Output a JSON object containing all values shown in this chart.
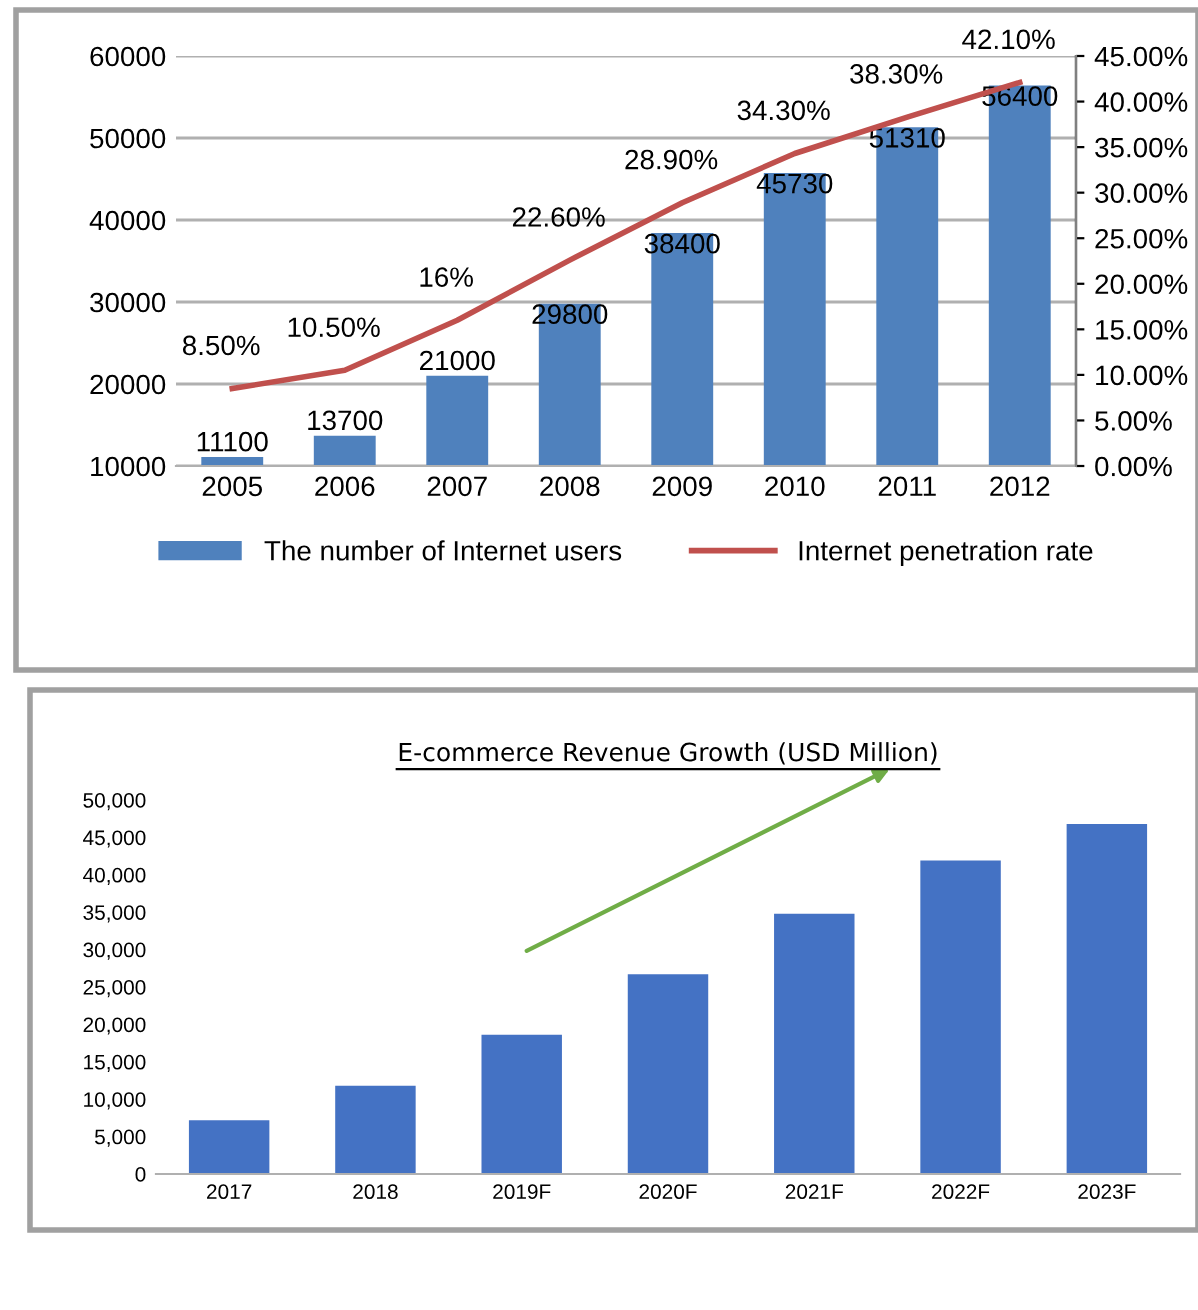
{
  "chart_data": [
    {
      "type": "bar",
      "categories": [
        "2005",
        "2006",
        "2007",
        "2008",
        "2009",
        "2010",
        "2011",
        "2012"
      ],
      "series": [
        {
          "name": "The number of Internet users",
          "color": "#4f81bd",
          "values": [
            11100,
            13700,
            21000,
            29800,
            38400,
            45730,
            51310,
            56400
          ],
          "value_labels": [
            "11100",
            "13700",
            "21000",
            "29800",
            "38400",
            "45730",
            "51310",
            "56400"
          ]
        },
        {
          "name": "Internet penetration rate",
          "type": "line",
          "axis": "y2",
          "color": "#c0504d",
          "values": [
            8.5,
            10.5,
            16,
            22.6,
            28.9,
            34.3,
            38.3,
            42.1
          ],
          "value_labels": [
            "8.50%",
            "10.50%",
            "16%",
            "22.60%",
            "28.90%",
            "34.30%",
            "38.30%",
            "42.10%"
          ]
        }
      ],
      "ylim": [
        10000,
        60000
      ],
      "yticks": [
        10000,
        20000,
        30000,
        40000,
        50000,
        60000
      ],
      "y2lim": [
        0,
        45
      ],
      "y2ticks": [
        {
          "value": 0,
          "label": "0.00%"
        },
        {
          "value": 5,
          "label": "5.00%"
        },
        {
          "value": 10,
          "label": "10.00%"
        },
        {
          "value": 15,
          "label": "15.00%"
        },
        {
          "value": 20,
          "label": "20.00%"
        },
        {
          "value": 25,
          "label": "25.00%"
        },
        {
          "value": 30,
          "label": "30.00%"
        },
        {
          "value": 35,
          "label": "35.00%"
        },
        {
          "value": 40,
          "label": "40.00%"
        },
        {
          "value": 45,
          "label": "45.00%"
        }
      ],
      "grid": "y",
      "legend": "bottom"
    },
    {
      "type": "bar",
      "title": "E-commerce Revenue Growth (USD Million)",
      "categories": [
        "2017",
        "2018",
        "2019F",
        "2020F",
        "2021F",
        "2022F",
        "2023F"
      ],
      "series": [
        {
          "color": "#4472c4",
          "values": [
            7200,
            11800,
            18600,
            26700,
            34800,
            41900,
            46800
          ]
        }
      ],
      "ylim": [
        0,
        50000
      ],
      "yticks": [
        {
          "value": 0,
          "label": "0"
        },
        {
          "value": 5000,
          "label": "5,000"
        },
        {
          "value": 10000,
          "label": "10,000"
        },
        {
          "value": 15000,
          "label": "15,000"
        },
        {
          "value": 20000,
          "label": "20,000"
        },
        {
          "value": 25000,
          "label": "25,000"
        },
        {
          "value": 30000,
          "label": "30,000"
        },
        {
          "value": 35000,
          "label": "35,000"
        },
        {
          "value": 40000,
          "label": "40,000"
        },
        {
          "value": 45000,
          "label": "45,000"
        },
        {
          "value": 50000,
          "label": "50,000"
        }
      ],
      "grid": false,
      "legend": false
    }
  ]
}
